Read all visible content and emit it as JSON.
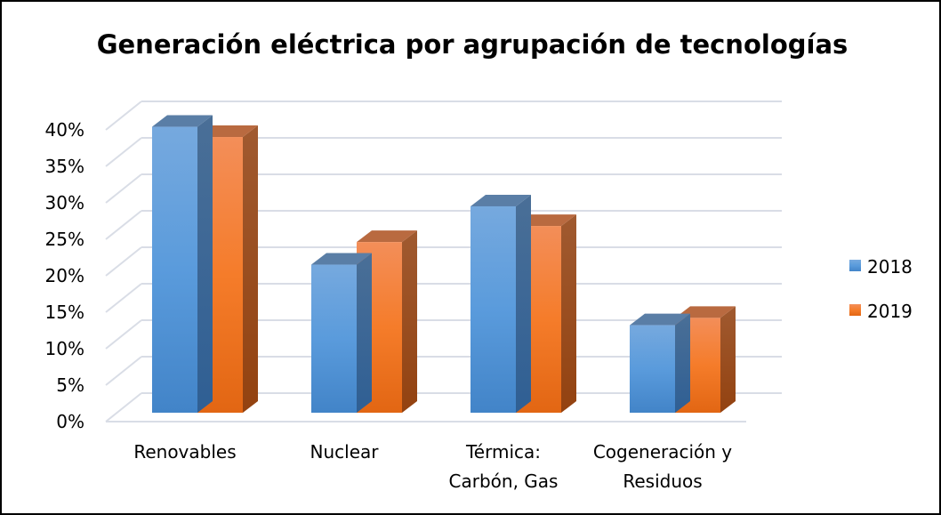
{
  "chart_data": {
    "type": "bar",
    "title": "Generación eléctrica por agrupación de tecnologías",
    "categories": [
      [
        "Renovables"
      ],
      [
        "Nuclear"
      ],
      [
        "Térmica:",
        "Carbón, Gas"
      ],
      [
        "Cogeneración y",
        "Residuos"
      ]
    ],
    "series": [
      {
        "name": "2018",
        "values": [
          39.2,
          20.3,
          28.3,
          12.0
        ],
        "color": "#5B9BD5"
      },
      {
        "name": "2019",
        "values": [
          37.8,
          23.4,
          25.6,
          13.0
        ],
        "color": "#ED7D31"
      }
    ],
    "ylim": [
      0,
      40
    ],
    "yticks": [
      "0%",
      "5%",
      "10%",
      "15%",
      "20%",
      "25%",
      "30%",
      "35%",
      "40%"
    ],
    "grid": true,
    "legend_position": "right",
    "style": "3d-clustered-column"
  }
}
